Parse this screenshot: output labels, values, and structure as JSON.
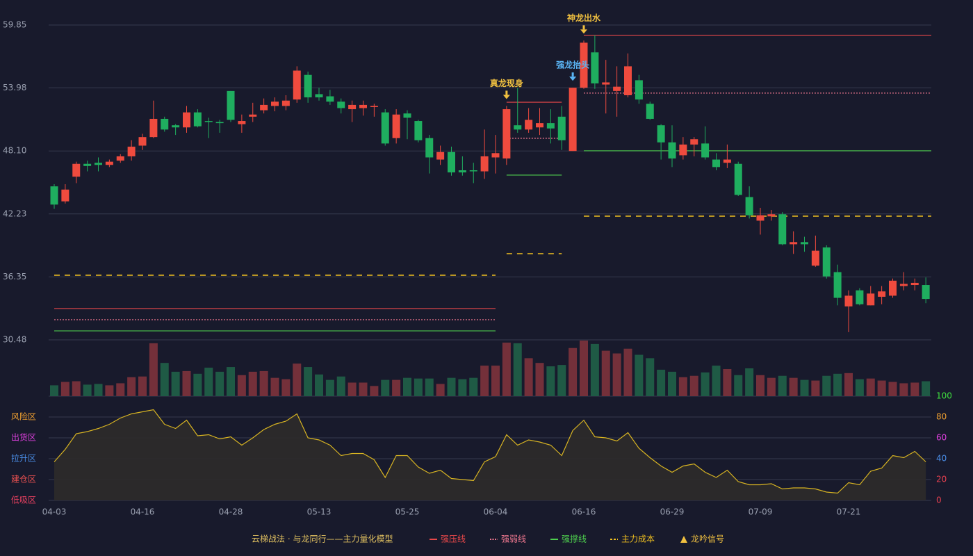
{
  "chart_data": {
    "type": "candlestick",
    "title": "云梯战法 · 与龙同行——主力量化模型",
    "categories": [
      "04-03",
      null,
      null,
      null,
      null,
      null,
      null,
      null,
      "04-16",
      null,
      null,
      null,
      null,
      null,
      null,
      null,
      "04-28",
      null,
      null,
      null,
      null,
      null,
      null,
      null,
      "05-13",
      null,
      null,
      null,
      null,
      null,
      null,
      null,
      "05-25",
      null,
      null,
      null,
      null,
      null,
      null,
      null,
      "06-04",
      null,
      null,
      null,
      null,
      null,
      null,
      null,
      "06-16",
      null,
      null,
      null,
      null,
      null,
      null,
      null,
      "06-29",
      null,
      null,
      null,
      null,
      null,
      null,
      null,
      "07-09",
      null,
      null,
      null,
      null,
      null,
      null,
      null,
      "07-21",
      null,
      null,
      null,
      null,
      null,
      null,
      null
    ],
    "open": [
      44.8,
      43.4,
      45.7,
      46.9,
      47.0,
      46.8,
      47.2,
      47.6,
      48.6,
      49.4,
      51.1,
      50.5,
      50.3,
      51.7,
      50.9,
      50.8,
      53.7,
      50.6,
      51.3,
      51.9,
      52.3,
      52.3,
      52.9,
      55.2,
      53.4,
      53.2,
      52.7,
      52.0,
      52.1,
      52.2,
      51.7,
      49.3,
      51.6,
      50.9,
      49.3,
      47.3,
      48.0,
      46.3,
      46.3,
      46.2,
      47.5,
      47.4,
      50.5,
      50.1,
      50.3,
      50.7,
      51.3,
      48.1,
      54.0,
      57.3,
      54.3,
      53.7,
      53.3,
      54.7,
      52.5,
      50.5,
      48.9,
      47.7,
      48.7,
      48.8,
      47.3,
      47.0,
      46.9,
      43.8,
      41.6,
      42.0,
      42.2,
      39.4,
      39.6,
      37.4,
      39.1,
      36.8,
      33.6,
      35.1,
      33.7,
      34.5,
      34.6,
      35.5,
      35.6,
      35.6
    ],
    "close": [
      43.1,
      44.5,
      46.9,
      46.7,
      46.8,
      47.1,
      47.6,
      48.5,
      49.4,
      51.1,
      50.1,
      50.3,
      51.7,
      50.4,
      50.8,
      50.7,
      51.0,
      50.9,
      51.5,
      52.4,
      52.7,
      52.8,
      55.6,
      53.1,
      53.1,
      52.7,
      52.1,
      52.4,
      52.4,
      52.3,
      48.8,
      51.5,
      51.2,
      49.1,
      47.5,
      48.0,
      46.1,
      46.1,
      46.2,
      47.6,
      47.9,
      52.0,
      50.1,
      51.0,
      50.7,
      50.2,
      49.1,
      54.0,
      58.2,
      54.4,
      54.5,
      54.1,
      56.0,
      52.9,
      51.1,
      48.9,
      47.4,
      48.7,
      49.2,
      47.5,
      46.6,
      47.3,
      44.0,
      42.1,
      42.1,
      42.2,
      39.4,
      39.6,
      39.4,
      38.8,
      36.4,
      34.4,
      34.6,
      33.8,
      34.8,
      35.0,
      36.0,
      35.7,
      35.8,
      34.3
    ],
    "high": [
      45.0,
      45.0,
      47.1,
      47.2,
      47.5,
      47.3,
      47.8,
      49.1,
      49.7,
      52.8,
      51.3,
      50.6,
      52.3,
      52.0,
      51.2,
      51.0,
      53.7,
      51.5,
      52.6,
      53.0,
      53.1,
      53.3,
      56.0,
      55.5,
      54.0,
      53.8,
      53.0,
      52.8,
      52.8,
      52.5,
      52.0,
      52.0,
      51.9,
      51.0,
      49.6,
      48.6,
      48.5,
      47.6,
      47.0,
      50.1,
      49.6,
      52.3,
      54.0,
      52.1,
      52.1,
      52.0,
      52.3,
      54.0,
      58.4,
      58.9,
      56.6,
      56.0,
      57.2,
      55.2,
      52.7,
      50.6,
      50.5,
      49.4,
      49.4,
      50.4,
      47.9,
      48.7,
      47.1,
      44.8,
      42.8,
      42.6,
      42.4,
      40.6,
      40.1,
      40.2,
      39.3,
      37.5,
      35.1,
      35.3,
      35.5,
      35.5,
      36.2,
      36.8,
      36.2,
      36.3
    ],
    "low": [
      42.7,
      43.2,
      45.1,
      46.2,
      46.2,
      46.6,
      47.0,
      47.2,
      48.2,
      49.3,
      49.9,
      49.6,
      49.8,
      50.3,
      49.3,
      49.8,
      50.8,
      49.8,
      50.8,
      51.6,
      51.8,
      51.9,
      52.6,
      52.6,
      52.8,
      52.4,
      51.6,
      50.8,
      51.4,
      51.3,
      48.6,
      48.8,
      49.2,
      48.9,
      46.0,
      46.8,
      45.8,
      45.8,
      45.1,
      45.5,
      46.0,
      46.8,
      49.8,
      49.8,
      49.6,
      48.8,
      48.2,
      48.1,
      53.9,
      53.9,
      51.6,
      51.3,
      53.1,
      52.5,
      51.0,
      47.3,
      46.6,
      47.3,
      47.6,
      47.3,
      46.3,
      46.5,
      43.9,
      41.8,
      40.3,
      41.6,
      39.3,
      38.5,
      38.7,
      37.3,
      36.2,
      33.7,
      31.2,
      33.7,
      33.7,
      33.8,
      34.4,
      35.1,
      35.1,
      33.9
    ],
    "up_color": "#ef4b3e",
    "down_color": "#1fae5f",
    "ylim": [
      30.48,
      59.85
    ],
    "yticks": [
      59.85,
      53.98,
      {
        "value": 48.1,
        "label": "48.10"
      },
      42.23,
      36.35,
      30.48
    ],
    "volume": {
      "values": [
        16,
        21,
        22,
        17,
        18,
        16,
        19,
        28,
        29,
        78,
        49,
        36,
        37,
        33,
        42,
        36,
        43,
        31,
        36,
        37,
        27,
        25,
        48,
        43,
        32,
        24,
        29,
        20,
        20,
        15,
        24,
        24,
        27,
        26,
        26,
        18,
        27,
        25,
        27,
        45,
        45,
        79,
        78,
        56,
        49,
        44,
        46,
        71,
        82,
        77,
        67,
        63,
        70,
        61,
        56,
        39,
        36,
        28,
        30,
        35,
        45,
        40,
        31,
        41,
        31,
        27,
        30,
        27,
        24,
        23,
        30,
        33,
        34,
        25,
        26,
        23,
        21,
        19,
        20,
        22
      ],
      "up_color": "#74303a",
      "down_color": "#1f5a45"
    },
    "oscillator": {
      "values": [
        37,
        49,
        64,
        66,
        69,
        73,
        79,
        83,
        85,
        87,
        73,
        69,
        77,
        62,
        63,
        59,
        61,
        53,
        60,
        68,
        73,
        76,
        83,
        60,
        58,
        53,
        43,
        45,
        45,
        39,
        22,
        43,
        43,
        32,
        26,
        29,
        21,
        20,
        19,
        37,
        42,
        63,
        53,
        58,
        56,
        53,
        43,
        67,
        77,
        61,
        60,
        57,
        65,
        50,
        41,
        33,
        27,
        33,
        35,
        27,
        22,
        29,
        18,
        15,
        15,
        16,
        11,
        12,
        12,
        11,
        8,
        7,
        17,
        15,
        28,
        31,
        43,
        41,
        47,
        37
      ],
      "color": "#d8b422",
      "fill": "#2e2b2a",
      "ylim": [
        0,
        100
      ],
      "yticks": [
        0,
        20,
        40,
        60,
        80,
        100
      ],
      "ytick_colors": [
        "#e84050",
        "#e84050",
        "#4a8ee8",
        "#e040e0",
        "#f0a030",
        "#3fe03f"
      ],
      "zones": [
        {
          "name": "低吸区",
          "value": 0,
          "color": "#e84060"
        },
        {
          "name": "建仓区",
          "value": 20,
          "color": "#e85050"
        },
        {
          "name": "拉升区",
          "value": 40,
          "color": "#4a8ee8"
        },
        {
          "name": "出货区",
          "value": 60,
          "color": "#e040e0"
        },
        {
          "name": "风险区",
          "value": 80,
          "color": "#f0a030"
        }
      ]
    },
    "levels": [
      {
        "name": "强压线",
        "color": "#e8484a",
        "style": "solid",
        "segments": [
          {
            "from": 0,
            "to": 40,
            "value": 33.4
          },
          {
            "from": 41,
            "to": 46,
            "value": 52.65
          },
          {
            "from": 48,
            "to": 79,
            "value": 58.88
          }
        ]
      },
      {
        "name": "强弱线",
        "color": "#f07890",
        "style": "dotted",
        "segments": [
          {
            "from": 0,
            "to": 40,
            "value": 32.36
          },
          {
            "from": 41,
            "to": 46,
            "value": 49.28
          },
          {
            "from": 48,
            "to": 79,
            "value": 53.5
          }
        ]
      },
      {
        "name": "强撑线",
        "color": "#4ed04e",
        "style": "solid",
        "segments": [
          {
            "from": 0,
            "to": 40,
            "value": 31.32
          },
          {
            "from": 41,
            "to": 46,
            "value": 45.85
          },
          {
            "from": 48,
            "to": 79,
            "value": 48.12
          }
        ]
      },
      {
        "name": "主力成本",
        "color": "#f0c020",
        "style": "dashed",
        "segments": [
          {
            "from": 0,
            "to": 40,
            "value": 36.51
          },
          {
            "from": 41,
            "to": 46,
            "value": 38.52
          },
          {
            "from": 48,
            "to": 79,
            "value": 42.02
          }
        ]
      }
    ],
    "signals": [
      {
        "label": "真龙现身",
        "index": 41,
        "color": "#f0c040"
      },
      {
        "label": "强龙抬头",
        "index": 47,
        "color": "#5ab4f4"
      },
      {
        "label": "神龙出水",
        "index": 48,
        "color": "#f0c040"
      }
    ],
    "signal_legend": {
      "name": "龙吟信号",
      "color": "#f0c040"
    }
  }
}
